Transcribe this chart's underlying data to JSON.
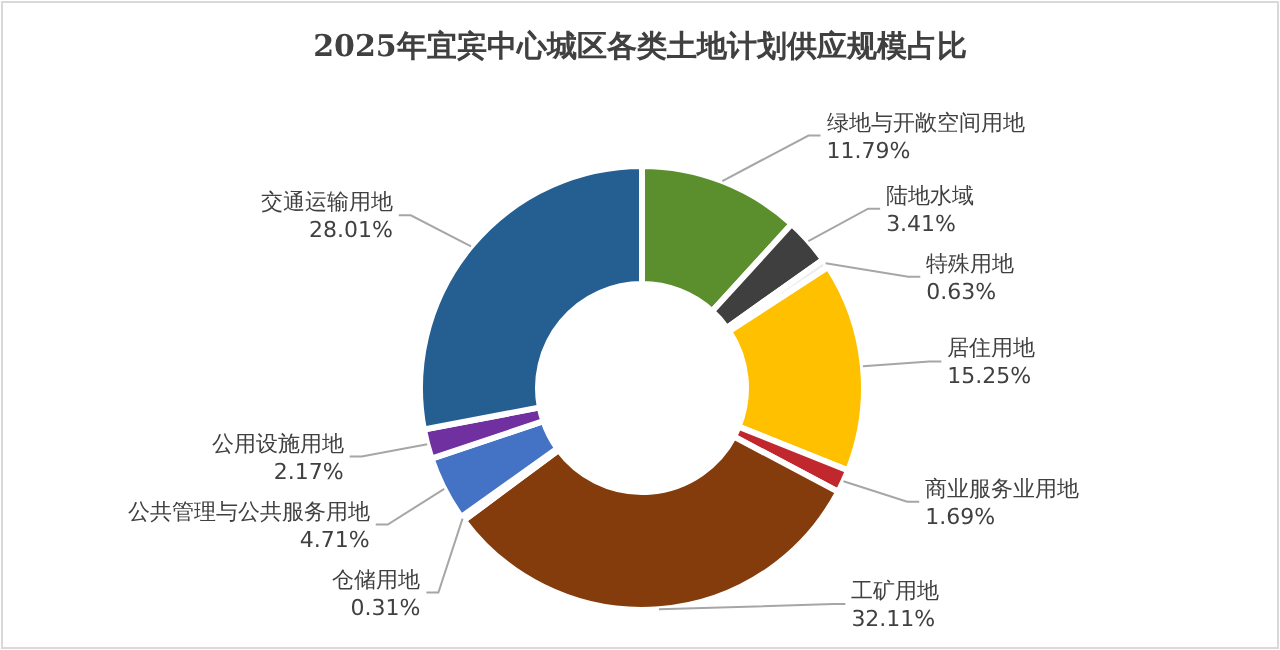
{
  "chart_data": {
    "type": "donut",
    "title": "2025年宜宾中心城区各类土地计划供应规模占比",
    "categories": [
      "绿地与开敞空间用地",
      "陆地水域",
      "特殊用地",
      "居住用地",
      "商业服务业用地",
      "工矿用地",
      "仓储用地",
      "公共管理与公共服务用地",
      "公用设施用地",
      "交通运输用地"
    ],
    "values": [
      11.79,
      3.41,
      0.63,
      15.25,
      1.69,
      32.11,
      0.31,
      4.71,
      2.17,
      28.01
    ],
    "value_labels": [
      "11.79%",
      "3.41%",
      "0.63%",
      "15.25%",
      "1.69%",
      "32.11%",
      "0.31%",
      "4.71%",
      "2.17%",
      "28.01%"
    ],
    "colors": [
      "#5b8f2e",
      "#3f3f3f",
      "#ededed",
      "#ffc000",
      "#c0282d",
      "#843c0c",
      "#a5a5a5",
      "#4472c4",
      "#7030a0",
      "#255e91"
    ]
  }
}
